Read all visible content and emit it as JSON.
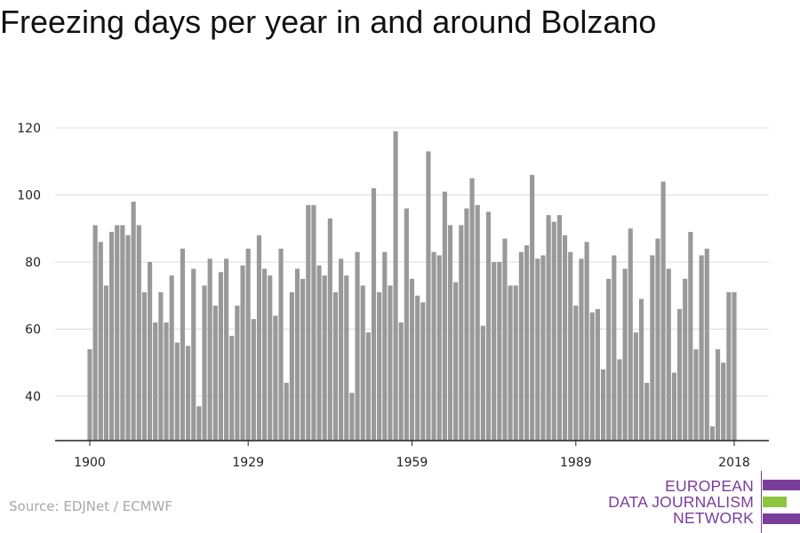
{
  "title": "Freezing days per year in and around Bolzano",
  "source": "Source: EDJNet / ECMWF",
  "logo": {
    "lines": [
      "EUROPEAN",
      "DATA JOURNALISM",
      "NETWORK"
    ],
    "colors": {
      "purple": "#7a3d9a",
      "green": "#8cc63f"
    }
  },
  "chart_data": {
    "type": "bar",
    "x_start": 1900,
    "x_end": 2018,
    "values": [
      54,
      91,
      86,
      73,
      89,
      91,
      91,
      88,
      98,
      91,
      71,
      80,
      62,
      71,
      62,
      76,
      56,
      84,
      55,
      78,
      37,
      73,
      81,
      67,
      77,
      81,
      58,
      67,
      79,
      84,
      63,
      88,
      78,
      76,
      64,
      84,
      44,
      71,
      78,
      75,
      97,
      97,
      79,
      76,
      93,
      71,
      81,
      76,
      41,
      83,
      73,
      59,
      102,
      71,
      83,
      73,
      119,
      62,
      96,
      75,
      70,
      68,
      113,
      83,
      82,
      101,
      91,
      74,
      91,
      96,
      105,
      97,
      61,
      95,
      80,
      80,
      87,
      73,
      73,
      83,
      85,
      106,
      81,
      82,
      94,
      92,
      94,
      88,
      83,
      67,
      81,
      86,
      65,
      66,
      48,
      75,
      82,
      51,
      78,
      90,
      59,
      69,
      44,
      82,
      87,
      104,
      78,
      47,
      66,
      75,
      89,
      54,
      82,
      84,
      31,
      54,
      50,
      71,
      71
    ],
    "y_ticks": [
      40,
      60,
      80,
      100,
      120
    ],
    "x_ticks": [
      "1900",
      "1929",
      "1959",
      "1989",
      "2018"
    ],
    "ylim": [
      27,
      123
    ],
    "grid": true,
    "bar_color": "#999999"
  }
}
